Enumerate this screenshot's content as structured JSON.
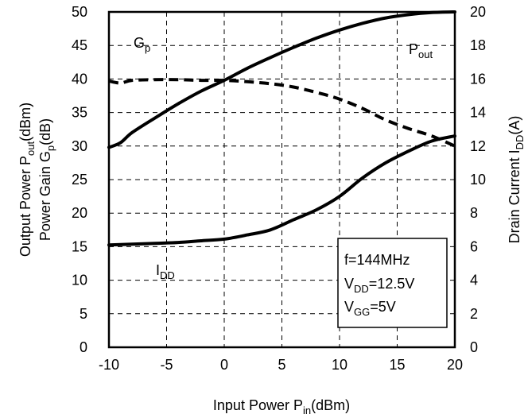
{
  "chart_data": {
    "type": "line",
    "xlabel": {
      "main": "Input Power P",
      "sub": "in",
      "tail": "(dBm)"
    },
    "ylabel_left": [
      {
        "main": "Output Power P",
        "sub": "out",
        "tail": "(dBm)"
      },
      {
        "main": "Power Gain G",
        "sub": "p",
        "tail": "(dB)"
      }
    ],
    "ylabel_right": {
      "main": "Drain Current I",
      "sub": "DD",
      "tail": "(A)"
    },
    "xlim": [
      -10,
      20
    ],
    "ylim_left": [
      0,
      50
    ],
    "ylim_right": [
      0,
      20
    ],
    "x_ticks": [
      "-10",
      "-5",
      "0",
      "5",
      "10",
      "15",
      "20"
    ],
    "y_left_ticks": [
      "0",
      "5",
      "10",
      "15",
      "20",
      "25",
      "30",
      "35",
      "40",
      "45",
      "50"
    ],
    "y_right_ticks": [
      "0",
      "2",
      "4",
      "6",
      "8",
      "10",
      "12",
      "14",
      "16",
      "18",
      "20"
    ],
    "grid": true,
    "series": [
      {
        "key": "pout",
        "axis": "left",
        "style": "solid",
        "points": [
          [
            -10,
            29.8
          ],
          [
            -9,
            30.5
          ],
          [
            -8,
            32
          ],
          [
            -6,
            34.2
          ],
          [
            -4,
            36.3
          ],
          [
            -2,
            38.2
          ],
          [
            0,
            39.8
          ],
          [
            2,
            41.6
          ],
          [
            4,
            43.2
          ],
          [
            6,
            44.7
          ],
          [
            8,
            46.1
          ],
          [
            10,
            47.3
          ],
          [
            12,
            48.3
          ],
          [
            14,
            49.1
          ],
          [
            16,
            49.6
          ],
          [
            18,
            49.9
          ],
          [
            20,
            50
          ]
        ]
      },
      {
        "key": "gp",
        "axis": "left",
        "style": "dashed",
        "points": [
          [
            -10,
            39.7
          ],
          [
            -9,
            39.4
          ],
          [
            -8,
            39.8
          ],
          [
            -6,
            39.9
          ],
          [
            -4,
            39.9
          ],
          [
            -2,
            39.8
          ],
          [
            0,
            39.8
          ],
          [
            2,
            39.6
          ],
          [
            4,
            39.3
          ],
          [
            6,
            38.8
          ],
          [
            8,
            38
          ],
          [
            10,
            37
          ],
          [
            12,
            35.6
          ],
          [
            14,
            33.9
          ],
          [
            16,
            32.6
          ],
          [
            18,
            31.5
          ],
          [
            20,
            30
          ]
        ]
      },
      {
        "key": "idd",
        "axis": "right",
        "style": "solid",
        "points": [
          [
            -10,
            6.1
          ],
          [
            -8,
            6.15
          ],
          [
            -6,
            6.2
          ],
          [
            -4,
            6.25
          ],
          [
            -2,
            6.35
          ],
          [
            0,
            6.45
          ],
          [
            2,
            6.7
          ],
          [
            4,
            7
          ],
          [
            6,
            7.6
          ],
          [
            8,
            8.2
          ],
          [
            10,
            9
          ],
          [
            12,
            10.1
          ],
          [
            14,
            11
          ],
          [
            16,
            11.7
          ],
          [
            18,
            12.3
          ],
          [
            20,
            12.6
          ]
        ]
      }
    ],
    "curve_labels": [
      {
        "key": "gp",
        "main": "G",
        "sub": "p"
      },
      {
        "key": "pout",
        "main": "P",
        "sub": "out"
      },
      {
        "key": "idd",
        "main": "I",
        "sub": "DD"
      }
    ],
    "annotation": [
      {
        "main": "f=144MHz",
        "sub": "",
        "tail": ""
      },
      {
        "main": "V",
        "sub": "DD",
        "tail": "=12.5V"
      },
      {
        "main": "V",
        "sub": "GG",
        "tail": "=5V"
      }
    ]
  }
}
